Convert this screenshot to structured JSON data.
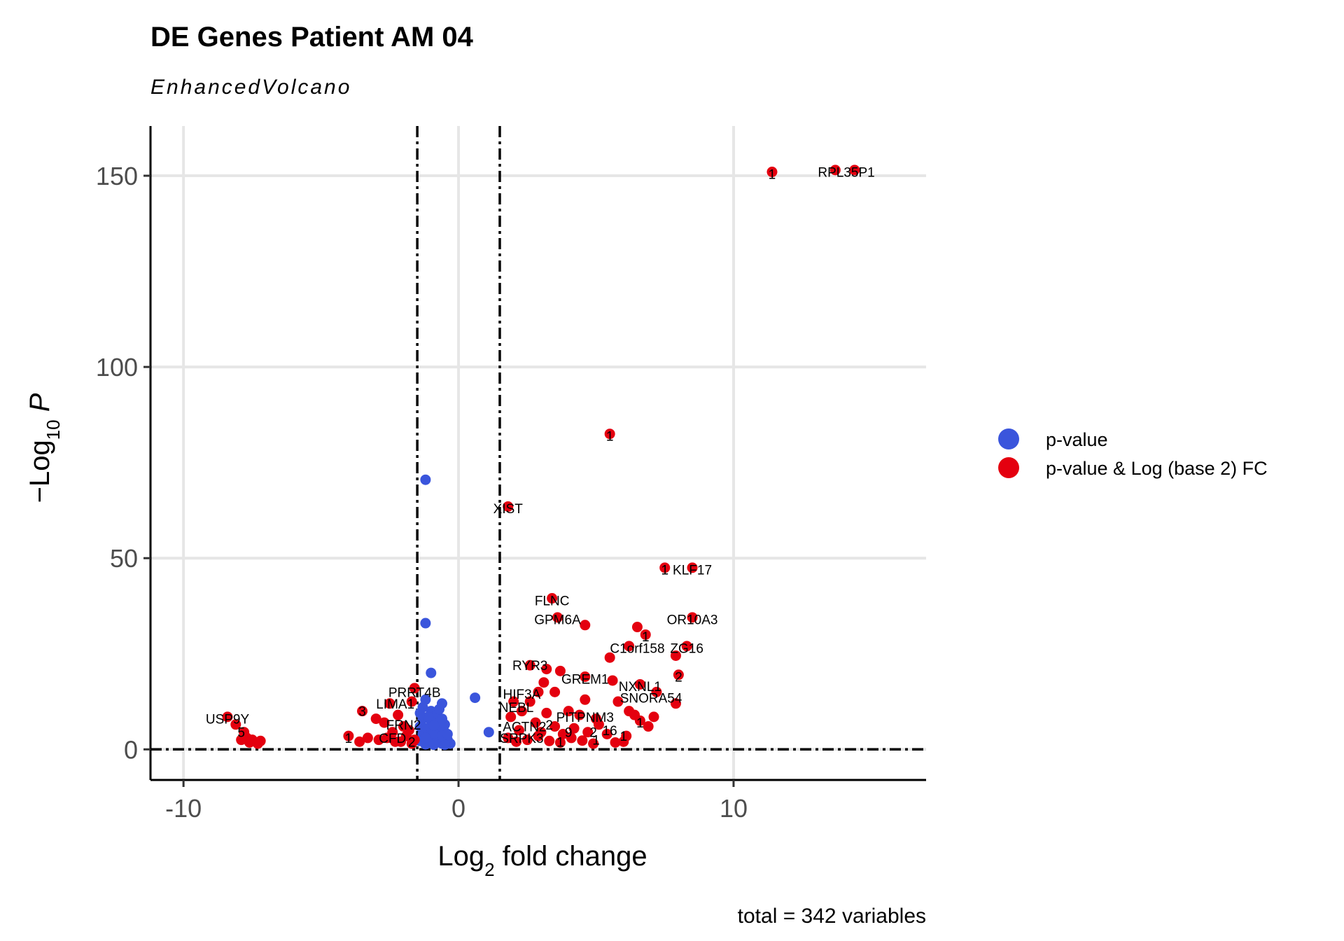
{
  "chart_data": {
    "type": "scatter",
    "title": "DE Genes Patient AM 04",
    "subtitle": "EnhancedVolcano",
    "xlabel": {
      "prefix": "Log",
      "sub": "2",
      "suffix": " fold change"
    },
    "ylabel": {
      "prefix": "−Log",
      "sub": "10",
      "suffix": " P"
    },
    "xlim": [
      -11.2,
      17.0
    ],
    "ylim": [
      -8,
      163
    ],
    "xticks": [
      -10,
      0,
      10
    ],
    "xtick_labels": [
      "-10",
      "0",
      "10"
    ],
    "yticks": [
      0,
      50,
      100,
      150
    ],
    "ytick_labels": [
      "0",
      "50",
      "100",
      "150"
    ],
    "grid": true,
    "fc_cutoffs": [
      -1.5,
      1.5
    ],
    "p_cutoff_line": 0,
    "caption": "total = 342 variables",
    "legend_position": "right",
    "colors": {
      "pvalue": "#3a55dc",
      "both": "#e4000f"
    },
    "series": [
      {
        "name": "p-value",
        "color": "#3a55dc",
        "points": [
          [
            -1.2,
            70.5
          ],
          [
            -1.2,
            33
          ],
          [
            -1.0,
            20
          ],
          [
            0.6,
            13.5
          ],
          [
            1.1,
            4.5
          ],
          [
            -1.2,
            13
          ],
          [
            -0.6,
            12
          ],
          [
            -1.3,
            11
          ],
          [
            -1.0,
            10
          ],
          [
            -0.8,
            9
          ],
          [
            -1.3,
            8
          ],
          [
            -1.0,
            7.5
          ],
          [
            -0.7,
            7
          ],
          [
            -0.5,
            6.5
          ],
          [
            -1.4,
            6
          ],
          [
            -1.1,
            5.5
          ],
          [
            -0.8,
            5
          ],
          [
            -0.5,
            4.5
          ],
          [
            -1.3,
            4
          ],
          [
            -1.0,
            3.5
          ],
          [
            -0.7,
            3
          ],
          [
            -0.4,
            2.5
          ],
          [
            -1.4,
            2.2
          ],
          [
            -1.1,
            2
          ],
          [
            -0.8,
            1.8
          ],
          [
            -0.6,
            1.5
          ],
          [
            -0.3,
            1.5
          ],
          [
            -1.2,
            1.3
          ],
          [
            -0.9,
            1.2
          ],
          [
            -0.5,
            1.2
          ],
          [
            -1.3,
            5.8
          ],
          [
            -0.9,
            4.2
          ],
          [
            -0.6,
            3.6
          ],
          [
            -1.2,
            3
          ],
          [
            -0.4,
            4
          ],
          [
            -0.9,
            6.2
          ],
          [
            -0.6,
            8
          ],
          [
            -1.1,
            8.5
          ],
          [
            -0.7,
            10.5
          ],
          [
            -1.4,
            9.5
          ]
        ]
      },
      {
        "name": "p-value & Log (base 2) FC",
        "color": "#e4000f",
        "points": [
          [
            11.4,
            151
          ],
          [
            13.7,
            151.5
          ],
          [
            14.4,
            151.5
          ],
          [
            5.5,
            82.5
          ],
          [
            1.8,
            63.5
          ],
          [
            7.5,
            47.5
          ],
          [
            8.5,
            47.5
          ],
          [
            3.4,
            39.5
          ],
          [
            3.6,
            34.5
          ],
          [
            4.6,
            32.5
          ],
          [
            8.5,
            34.5
          ],
          [
            6.5,
            32
          ],
          [
            6.8,
            30
          ],
          [
            6.2,
            27
          ],
          [
            8.3,
            27
          ],
          [
            5.5,
            24
          ],
          [
            7.9,
            24.5
          ],
          [
            2.6,
            22
          ],
          [
            3.2,
            21
          ],
          [
            3.7,
            20.5
          ],
          [
            4.6,
            19
          ],
          [
            5.6,
            18
          ],
          [
            8.0,
            19.5
          ],
          [
            6.6,
            17
          ],
          [
            3.1,
            17.5
          ],
          [
            2.9,
            15
          ],
          [
            3.5,
            15
          ],
          [
            7.2,
            15
          ],
          [
            4.6,
            13
          ],
          [
            5.8,
            12.5
          ],
          [
            7.9,
            12
          ],
          [
            6.2,
            10
          ],
          [
            6.4,
            9
          ],
          [
            7.1,
            8.5
          ],
          [
            6.6,
            7.5
          ],
          [
            4.0,
            10
          ],
          [
            4.4,
            9
          ],
          [
            3.2,
            9.5
          ],
          [
            5.0,
            8
          ],
          [
            2.6,
            12.5
          ],
          [
            2.0,
            12.5
          ],
          [
            2.3,
            10
          ],
          [
            1.9,
            8.5
          ],
          [
            2.8,
            7
          ],
          [
            3.5,
            6
          ],
          [
            4.2,
            5.5
          ],
          [
            5.1,
            6.5
          ],
          [
            6.9,
            6
          ],
          [
            2.2,
            5
          ],
          [
            3.0,
            4.5
          ],
          [
            3.8,
            4
          ],
          [
            4.7,
            4.5
          ],
          [
            5.4,
            4
          ],
          [
            6.1,
            3.5
          ],
          [
            1.8,
            3
          ],
          [
            2.5,
            2.5
          ],
          [
            3.3,
            2.2
          ],
          [
            4.5,
            2.3
          ],
          [
            6.0,
            2
          ],
          [
            2.1,
            2
          ],
          [
            3.7,
            1.8
          ],
          [
            4.9,
            1.5
          ],
          [
            5.7,
            1.8
          ],
          [
            2.9,
            3.5
          ],
          [
            4.1,
            3
          ],
          [
            -1.6,
            16
          ],
          [
            -1.7,
            12.5
          ],
          [
            -2.5,
            12
          ],
          [
            -3.5,
            10
          ],
          [
            -2.2,
            9
          ],
          [
            -3.0,
            8
          ],
          [
            -2.7,
            7
          ],
          [
            -2.0,
            6
          ],
          [
            -1.8,
            5
          ],
          [
            -2.4,
            4.5
          ],
          [
            -3.3,
            3
          ],
          [
            -2.9,
            2.5
          ],
          [
            -2.1,
            2
          ],
          [
            -1.6,
            2.5
          ],
          [
            -1.9,
            3.5
          ],
          [
            -2.6,
            3
          ],
          [
            -3.6,
            2
          ],
          [
            -4.0,
            3.5
          ],
          [
            -2.3,
            2
          ],
          [
            -1.7,
            1.5
          ],
          [
            -8.4,
            8.5
          ],
          [
            -8.1,
            6.5
          ],
          [
            -7.8,
            4.5
          ],
          [
            -7.7,
            3
          ],
          [
            -7.5,
            2.5
          ],
          [
            -7.2,
            2.2
          ],
          [
            -7.6,
            1.8
          ],
          [
            -7.3,
            1.5
          ],
          [
            -7.9,
            2.5
          ]
        ]
      }
    ],
    "gene_labels": [
      {
        "text": "RPL35P1",
        "x": 14.1,
        "y": 151
      },
      {
        "text": "XIST",
        "x": 1.8,
        "y": 63
      },
      {
        "text": "KLF17",
        "x": 8.5,
        "y": 47
      },
      {
        "text": "FLNC",
        "x": 3.4,
        "y": 39
      },
      {
        "text": "GPM6A",
        "x": 3.6,
        "y": 34
      },
      {
        "text": "OR10A3",
        "x": 8.5,
        "y": 34
      },
      {
        "text": "C1orf158",
        "x": 6.5,
        "y": 26.5
      },
      {
        "text": "ZG16",
        "x": 8.3,
        "y": 26.5
      },
      {
        "text": "RYR3",
        "x": 2.6,
        "y": 22
      },
      {
        "text": "GREM1",
        "x": 4.6,
        "y": 18.5
      },
      {
        "text": "NXNL1",
        "x": 6.6,
        "y": 16.5
      },
      {
        "text": "HIF3A",
        "x": 2.3,
        "y": 14.5
      },
      {
        "text": "SNORA54",
        "x": 7.0,
        "y": 13.5
      },
      {
        "text": "NEBL",
        "x": 2.1,
        "y": 11
      },
      {
        "text": "PITPNM3",
        "x": 4.6,
        "y": 8.5
      },
      {
        "text": "ACTN2",
        "x": 2.4,
        "y": 6
      },
      {
        "text": "SRPK3",
        "x": 2.3,
        "y": 3
      },
      {
        "text": "PRRT4B",
        "x": -1.6,
        "y": 15
      },
      {
        "text": "LIMA1",
        "x": -2.3,
        "y": 12
      },
      {
        "text": "FRN2",
        "x": -2.0,
        "y": 6.5
      },
      {
        "text": "CFD",
        "x": -2.4,
        "y": 3
      },
      {
        "text": "USP9Y",
        "x": -8.4,
        "y": 8
      }
    ],
    "count_labels": [
      {
        "text": "1",
        "x": 11.4,
        "y": 150.5
      },
      {
        "text": "1",
        "x": 5.5,
        "y": 82
      },
      {
        "text": "1",
        "x": 7.5,
        "y": 47
      },
      {
        "text": "1",
        "x": 6.8,
        "y": 29.5
      },
      {
        "text": "2",
        "x": 8.0,
        "y": 19
      },
      {
        "text": "1",
        "x": 6.6,
        "y": 7
      },
      {
        "text": "1",
        "x": 6.0,
        "y": 3.5
      },
      {
        "text": "2",
        "x": 4.9,
        "y": 4.5
      },
      {
        "text": "9",
        "x": 4.0,
        "y": 4.5
      },
      {
        "text": "16",
        "x": 5.5,
        "y": 5
      },
      {
        "text": "1",
        "x": 3.7,
        "y": 2
      },
      {
        "text": "1",
        "x": 5.0,
        "y": 2.5
      },
      {
        "text": "2",
        "x": 3.3,
        "y": 6.5
      },
      {
        "text": "3",
        "x": -3.5,
        "y": 10
      },
      {
        "text": "1",
        "x": -4.0,
        "y": 3
      },
      {
        "text": "2",
        "x": -1.7,
        "y": 2
      },
      {
        "text": "5",
        "x": -7.9,
        "y": 4.5
      }
    ],
    "legend": [
      {
        "label": "p-value",
        "color": "#3a55dc"
      },
      {
        "label": "p-value & Log (base 2) FC",
        "color": "#e4000f"
      }
    ]
  }
}
